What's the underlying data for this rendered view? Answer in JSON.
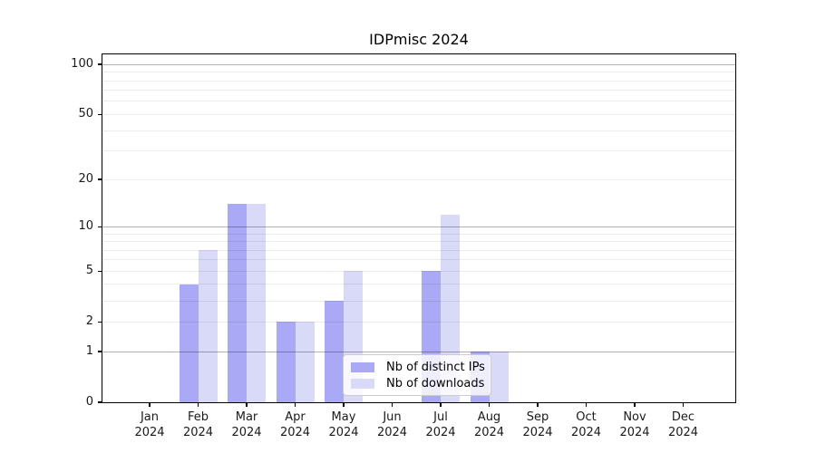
{
  "chart_data": {
    "type": "bar",
    "title": "IDPmisc 2024",
    "categories": [
      "Jan 2024",
      "Feb 2024",
      "Mar 2024",
      "Apr 2024",
      "May 2024",
      "Jun 2024",
      "Jul 2024",
      "Aug 2024",
      "Sep 2024",
      "Oct 2024",
      "Nov 2024",
      "Dec 2024"
    ],
    "series": [
      {
        "name": "Nb of distinct IPs",
        "slug": "distinct-ips",
        "color": "#a9a9f6",
        "values": [
          0,
          4,
          14,
          2,
          3,
          0,
          5,
          1,
          0,
          0,
          0,
          0
        ]
      },
      {
        "name": "Nb of downloads",
        "slug": "downloads",
        "color": "#d9d9f8",
        "values": [
          0,
          7,
          14,
          2,
          5,
          0,
          12,
          1,
          0,
          0,
          0,
          0
        ]
      }
    ],
    "xlabel": "",
    "ylabel": "",
    "y_ticks": [
      0,
      1,
      2,
      5,
      10,
      20,
      50,
      100
    ],
    "y_major_gridlines": [
      1,
      10,
      100
    ],
    "scale": "log1p",
    "ylim": [
      0,
      115
    ],
    "grid": "both",
    "legend_position": "lower center"
  }
}
